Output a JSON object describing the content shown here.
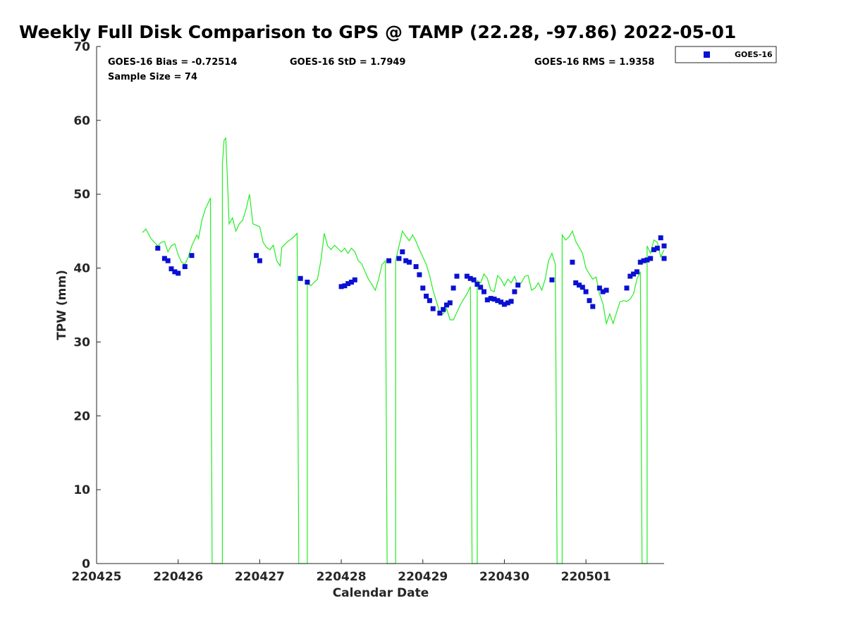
{
  "chart_data": {
    "type": "scatter",
    "title": "Weekly Full Disk Comparison to GPS @ TAMP (22.28, -97.86) 2022-05-01",
    "xlabel": "Calendar Date",
    "ylabel": "TPW (mm)",
    "xlim": [
      "2022-04-25",
      "2022-05-01T23:00"
    ],
    "ylim": [
      0,
      70
    ],
    "x_ticks": [
      "220425",
      "220426",
      "220427",
      "220428",
      "220429",
      "220430",
      "220501"
    ],
    "y_ticks": [
      0,
      10,
      20,
      30,
      40,
      50,
      60,
      70
    ],
    "grid": false,
    "legend": {
      "placement": "top-right",
      "entries": [
        "GOES-16"
      ]
    },
    "stats": {
      "bias": "GOES-16 Bias = -0.72514",
      "std": "GOES-16 StD = 1.7949",
      "rms": "GOES-16 RMS = 1.9358",
      "sample_size": "Sample Size = 74"
    },
    "colors": {
      "goes": "#0a10d2",
      "gps": "#22ee22"
    },
    "series": [
      {
        "name": "GOES-16",
        "marker": "square",
        "x": [
          "2022-04-25T18:00",
          "2022-04-25T20:00",
          "2022-04-25T21:00",
          "2022-04-25T22:00",
          "2022-04-25T23:00",
          "2022-04-26T00:00",
          "2022-04-26T02:00",
          "2022-04-26T04:00",
          "2022-04-26T23:00",
          "2022-04-27T00:00",
          "2022-04-27T12:00",
          "2022-04-27T14:00",
          "2022-04-28T00:00",
          "2022-04-28T01:00",
          "2022-04-28T02:00",
          "2022-04-28T03:00",
          "2022-04-28T04:00",
          "2022-04-28T14:00",
          "2022-04-28T17:00",
          "2022-04-28T18:00",
          "2022-04-28T19:00",
          "2022-04-28T20:00",
          "2022-04-28T22:00",
          "2022-04-28T23:00",
          "2022-04-29T00:00",
          "2022-04-29T01:00",
          "2022-04-29T02:00",
          "2022-04-29T03:00",
          "2022-04-29T05:00",
          "2022-04-29T06:00",
          "2022-04-29T07:00",
          "2022-04-29T08:00",
          "2022-04-29T09:00",
          "2022-04-29T10:00",
          "2022-04-29T13:00",
          "2022-04-29T14:00",
          "2022-04-29T15:00",
          "2022-04-29T16:00",
          "2022-04-29T17:00",
          "2022-04-29T18:00",
          "2022-04-29T19:00",
          "2022-04-29T20:00",
          "2022-04-29T21:00",
          "2022-04-29T22:00",
          "2022-04-29T23:00",
          "2022-04-30T00:00",
          "2022-04-30T01:00",
          "2022-04-30T02:00",
          "2022-04-30T03:00",
          "2022-04-30T04:00",
          "2022-04-30T14:00",
          "2022-04-30T20:00",
          "2022-04-30T21:00",
          "2022-04-30T22:00",
          "2022-04-30T23:00",
          "2022-05-01T00:00",
          "2022-05-01T01:00",
          "2022-05-01T02:00",
          "2022-05-01T04:00",
          "2022-05-01T05:00",
          "2022-05-01T06:00",
          "2022-05-01T12:00",
          "2022-05-01T13:00",
          "2022-05-01T14:00",
          "2022-05-01T15:00",
          "2022-05-01T16:00",
          "2022-05-01T17:00",
          "2022-05-01T18:00",
          "2022-05-01T19:00",
          "2022-05-01T20:00",
          "2022-05-01T21:00",
          "2022-05-01T22:00",
          "2022-05-01T23:00",
          "2022-05-01T23:00"
        ],
        "values": [
          42.7,
          41.3,
          41.0,
          39.9,
          39.5,
          39.3,
          40.2,
          41.7,
          41.7,
          41.0,
          38.6,
          38.1,
          37.5,
          37.6,
          37.9,
          38.1,
          38.4,
          41.0,
          41.3,
          42.2,
          41.0,
          40.8,
          40.2,
          39.1,
          37.3,
          36.2,
          35.6,
          34.5,
          33.9,
          34.4,
          35.0,
          35.3,
          37.3,
          38.9,
          38.9,
          38.6,
          38.4,
          37.8,
          37.4,
          36.8,
          35.7,
          35.9,
          35.8,
          35.6,
          35.4,
          35.1,
          35.3,
          35.5,
          36.8,
          37.7,
          38.4,
          40.8,
          38.0,
          37.7,
          37.4,
          36.8,
          35.6,
          34.8,
          37.3,
          36.8,
          37.0,
          37.3,
          38.9,
          39.2,
          39.5,
          40.8,
          41.0,
          41.1,
          41.3,
          42.5,
          42.7,
          44.1,
          43.0,
          41.3
        ]
      },
      {
        "name": "GPS",
        "marker": "line",
        "gaps": [
          "2022-04-26T06:00",
          "2022-04-27T01:00",
          "2022-04-28T04:00",
          "2022-04-29T04:00",
          "2022-04-30T04:00",
          "2022-05-01T04:00"
        ],
        "points": [
          [
            "2022-04-25T13:30",
            44.8
          ],
          [
            "2022-04-25T14:30",
            45.3
          ],
          [
            "2022-04-25T16:00",
            44.0
          ],
          [
            "2022-04-25T18:00",
            43.0
          ],
          [
            "2022-04-25T19:00",
            43.5
          ],
          [
            "2022-04-25T20:00",
            43.6
          ],
          [
            "2022-04-25T21:00",
            42.2
          ],
          [
            "2022-04-25T22:00",
            43.0
          ],
          [
            "2022-04-25T23:00",
            43.3
          ],
          [
            "2022-04-26T00:00",
            41.8
          ],
          [
            "2022-04-26T01:00",
            40.8
          ],
          [
            "2022-04-26T02:00",
            40.5
          ],
          [
            "2022-04-26T03:00",
            41.5
          ],
          [
            "2022-04-26T04:00",
            43.0
          ],
          [
            "2022-04-26T05:00",
            44.0
          ],
          [
            "2022-04-26T05:30",
            44.5
          ],
          [
            "2022-04-26T06:00",
            44.0
          ],
          [
            "2022-04-26T07:00",
            46.5
          ],
          [
            "2022-04-26T08:00",
            48.0
          ],
          [
            "2022-04-26T09:30",
            49.5
          ],
          [
            "2022-04-26T10:00",
            0
          ],
          [
            "2022-04-26T11:30",
            0
          ],
          [
            "2022-04-26T11:30",
            0
          ],
          [
            "2022-04-26T13:00",
            0
          ],
          [
            "2022-04-26T13:00",
            54.0
          ],
          [
            "2022-04-26T13:30",
            57.3
          ],
          [
            "2022-04-26T14:00",
            57.6
          ],
          [
            "2022-04-26T14:30",
            52.0
          ],
          [
            "2022-04-26T15:00",
            46.0
          ],
          [
            "2022-04-26T16:00",
            46.8
          ],
          [
            "2022-04-26T17:00",
            45.0
          ],
          [
            "2022-04-26T18:00",
            46.0
          ],
          [
            "2022-04-26T19:00",
            46.5
          ],
          [
            "2022-04-26T20:00",
            48.0
          ],
          [
            "2022-04-26T21:00",
            50.0
          ],
          [
            "2022-04-26T22:00",
            46.0
          ],
          [
            "2022-04-27T00:00",
            45.6
          ],
          [
            "2022-04-27T01:00",
            43.5
          ],
          [
            "2022-04-27T02:00",
            42.8
          ],
          [
            "2022-04-27T03:00",
            42.5
          ],
          [
            "2022-04-27T04:00",
            43.1
          ],
          [
            "2022-04-27T05:00",
            41.0
          ],
          [
            "2022-04-27T06:00",
            40.3
          ],
          [
            "2022-04-27T06:30",
            42.8
          ],
          [
            "2022-04-27T08:00",
            43.5
          ],
          [
            "2022-04-27T10:00",
            44.2
          ],
          [
            "2022-04-27T11:00",
            44.7
          ],
          [
            "2022-04-27T11:30",
            0
          ],
          [
            "2022-04-27T11:30",
            0
          ],
          [
            "2022-04-27T14:00",
            0
          ],
          [
            "2022-04-27T14:00",
            38.0
          ],
          [
            "2022-04-27T15:00",
            37.6
          ],
          [
            "2022-04-27T17:00",
            38.5
          ],
          [
            "2022-04-27T18:00",
            41.0
          ],
          [
            "2022-04-27T19:00",
            44.7
          ],
          [
            "2022-04-27T20:00",
            43.0
          ],
          [
            "2022-04-27T21:00",
            42.5
          ],
          [
            "2022-04-27T22:00",
            43.1
          ],
          [
            "2022-04-28T00:00",
            42.2
          ],
          [
            "2022-04-28T01:00",
            42.7
          ],
          [
            "2022-04-28T02:00",
            42.0
          ],
          [
            "2022-04-28T03:00",
            42.7
          ],
          [
            "2022-04-28T04:00",
            42.2
          ],
          [
            "2022-04-28T05:00",
            41.0
          ],
          [
            "2022-04-28T06:00",
            40.6
          ],
          [
            "2022-04-28T07:00",
            39.5
          ],
          [
            "2022-04-28T08:00",
            38.5
          ],
          [
            "2022-04-28T09:00",
            37.8
          ],
          [
            "2022-04-28T10:00",
            37.0
          ],
          [
            "2022-04-28T11:00",
            38.5
          ],
          [
            "2022-04-28T12:00",
            40.5
          ],
          [
            "2022-04-28T13:00",
            41.0
          ],
          [
            "2022-04-28T13:30",
            0
          ],
          [
            "2022-04-28T13:30",
            0
          ],
          [
            "2022-04-28T16:00",
            0
          ],
          [
            "2022-04-28T16:00",
            41.0
          ],
          [
            "2022-04-28T17:00",
            43.0
          ],
          [
            "2022-04-28T18:00",
            45.0
          ],
          [
            "2022-04-28T19:00",
            44.3
          ],
          [
            "2022-04-28T20:00",
            43.7
          ],
          [
            "2022-04-28T21:00",
            44.5
          ],
          [
            "2022-04-28T22:00",
            43.6
          ],
          [
            "2022-04-28T23:00",
            42.5
          ],
          [
            "2022-04-29T00:00",
            41.5
          ],
          [
            "2022-04-29T01:00",
            40.5
          ],
          [
            "2022-04-29T02:00",
            39.0
          ],
          [
            "2022-04-29T03:00",
            37.0
          ],
          [
            "2022-04-29T04:00",
            35.5
          ],
          [
            "2022-04-29T05:00",
            34.0
          ],
          [
            "2022-04-29T06:00",
            33.8
          ],
          [
            "2022-04-29T07:00",
            34.5
          ],
          [
            "2022-04-29T08:00",
            33.0
          ],
          [
            "2022-04-29T09:00",
            33.0
          ],
          [
            "2022-04-29T10:00",
            34.0
          ],
          [
            "2022-04-29T11:00",
            35.0
          ],
          [
            "2022-04-29T12:00",
            35.8
          ],
          [
            "2022-04-29T13:00",
            36.5
          ],
          [
            "2022-04-29T14:00",
            37.5
          ],
          [
            "2022-04-29T14:30",
            0
          ],
          [
            "2022-04-29T14:30",
            0
          ],
          [
            "2022-04-29T16:00",
            0
          ],
          [
            "2022-04-29T16:00",
            38.3
          ],
          [
            "2022-04-29T17:00",
            38.0
          ],
          [
            "2022-04-29T18:00",
            39.2
          ],
          [
            "2022-04-29T19:00",
            38.6
          ],
          [
            "2022-04-29T20:00",
            37.0
          ],
          [
            "2022-04-29T21:00",
            36.8
          ],
          [
            "2022-04-29T22:00",
            39.0
          ],
          [
            "2022-04-29T23:00",
            38.5
          ],
          [
            "2022-04-30T00:00",
            37.6
          ],
          [
            "2022-04-30T01:00",
            38.5
          ],
          [
            "2022-04-30T02:00",
            38.0
          ],
          [
            "2022-04-30T03:00",
            38.9
          ],
          [
            "2022-04-30T04:00",
            37.6
          ],
          [
            "2022-04-30T05:00",
            38.0
          ],
          [
            "2022-04-30T06:00",
            38.9
          ],
          [
            "2022-04-30T07:00",
            39.0
          ],
          [
            "2022-04-30T08:00",
            37.0
          ],
          [
            "2022-04-30T09:00",
            37.3
          ],
          [
            "2022-04-30T10:00",
            38.0
          ],
          [
            "2022-04-30T11:00",
            37.0
          ],
          [
            "2022-04-30T12:00",
            38.5
          ],
          [
            "2022-04-30T13:00",
            41.0
          ],
          [
            "2022-04-30T14:00",
            42.0
          ],
          [
            "2022-04-30T15:00",
            40.5
          ],
          [
            "2022-04-30T15:30",
            0
          ],
          [
            "2022-04-30T15:30",
            0
          ],
          [
            "2022-04-30T17:00",
            0
          ],
          [
            "2022-04-30T17:00",
            44.5
          ],
          [
            "2022-04-30T18:00",
            43.8
          ],
          [
            "2022-04-30T19:00",
            44.2
          ],
          [
            "2022-04-30T20:00",
            45.0
          ],
          [
            "2022-04-30T21:00",
            43.6
          ],
          [
            "2022-04-30T22:00",
            42.8
          ],
          [
            "2022-04-30T23:00",
            42.0
          ],
          [
            "2022-05-01T00:00",
            40.0
          ],
          [
            "2022-05-01T01:00",
            39.2
          ],
          [
            "2022-05-01T02:00",
            38.5
          ],
          [
            "2022-05-01T03:00",
            38.8
          ],
          [
            "2022-05-01T04:00",
            36.5
          ],
          [
            "2022-05-01T05:00",
            35.2
          ],
          [
            "2022-05-01T06:00",
            32.5
          ],
          [
            "2022-05-01T07:00",
            33.8
          ],
          [
            "2022-05-01T08:00",
            32.5
          ],
          [
            "2022-05-01T09:00",
            34.0
          ],
          [
            "2022-05-01T10:00",
            35.4
          ],
          [
            "2022-05-01T11:00",
            35.6
          ],
          [
            "2022-05-01T12:00",
            35.5
          ],
          [
            "2022-05-01T13:00",
            35.8
          ],
          [
            "2022-05-01T14:00",
            36.5
          ],
          [
            "2022-05-01T15:00",
            38.5
          ],
          [
            "2022-05-01T16:00",
            39.5
          ],
          [
            "2022-05-01T16:30",
            0
          ],
          [
            "2022-05-01T16:30",
            0
          ],
          [
            "2022-05-01T18:00",
            0
          ],
          [
            "2022-05-01T18:00",
            43.0
          ],
          [
            "2022-05-01T19:00",
            42.0
          ],
          [
            "2022-05-01T20:00",
            43.8
          ],
          [
            "2022-05-01T21:00",
            43.5
          ],
          [
            "2022-05-01T22:00",
            41.5
          ],
          [
            "2022-05-01T23:00",
            42.5
          ]
        ]
      }
    ]
  }
}
